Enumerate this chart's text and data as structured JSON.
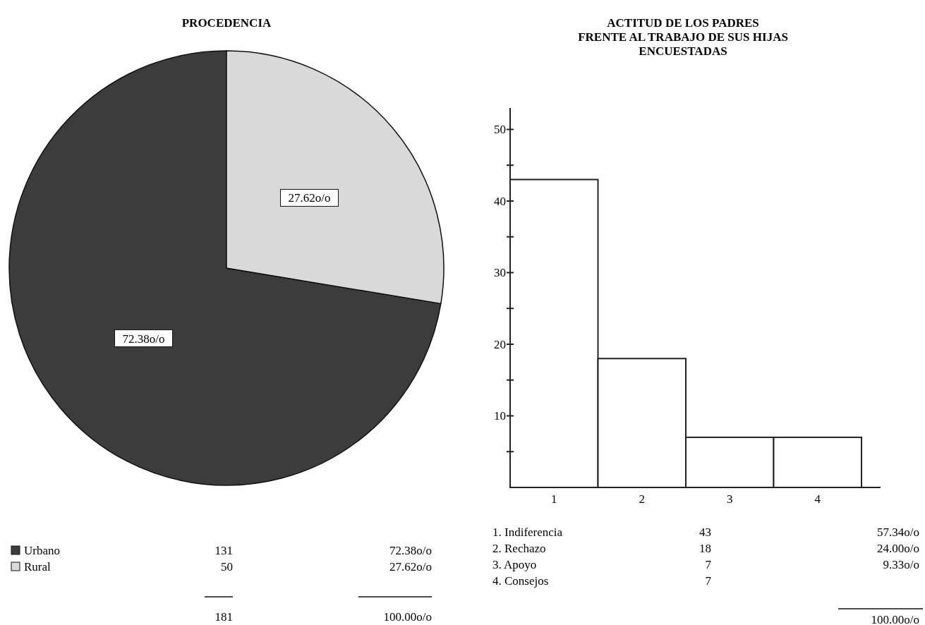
{
  "chart_data": [
    {
      "type": "pie",
      "title": "PROCEDENCIA",
      "categories": [
        "Urbano",
        "Rural"
      ],
      "values": [
        72.38,
        27.62
      ],
      "colors": [
        "#3c3c3c",
        "#d9d9d9"
      ],
      "value_labels": [
        "72.38o/o",
        "27.62o/o"
      ],
      "legend": "bottom left",
      "annotations": [
        "131",
        "50",
        "181",
        "100.00o/o"
      ]
    },
    {
      "type": "bar",
      "title": "ACTITUD DE LOS PADRES\nFRENTE AL TRABAJO DE SUS HIJAS\nENCUESTADAS",
      "categories": [
        "1",
        "2",
        "3",
        "4"
      ],
      "values": [
        43,
        18,
        7,
        7
      ],
      "color": "#ffffff",
      "ylim": [
        0,
        53
      ],
      "yticks": [
        {
          "value": 5,
          "label": null
        },
        10,
        {
          "value": 15,
          "label": null
        },
        20,
        {
          "value": 25,
          "label": null
        },
        30,
        {
          "value": 35,
          "label": null
        },
        40,
        {
          "value": 45,
          "label": null
        },
        50
      ],
      "annotations": [
        "1. Indiferencia",
        "2. Rechazo",
        "3. Apoyo",
        "4. Consejos",
        "43",
        "18",
        "7",
        "7",
        "57.34o/o",
        "24.00o/o",
        "9.33o/o",
        "100.00o/o"
      ]
    }
  ]
}
